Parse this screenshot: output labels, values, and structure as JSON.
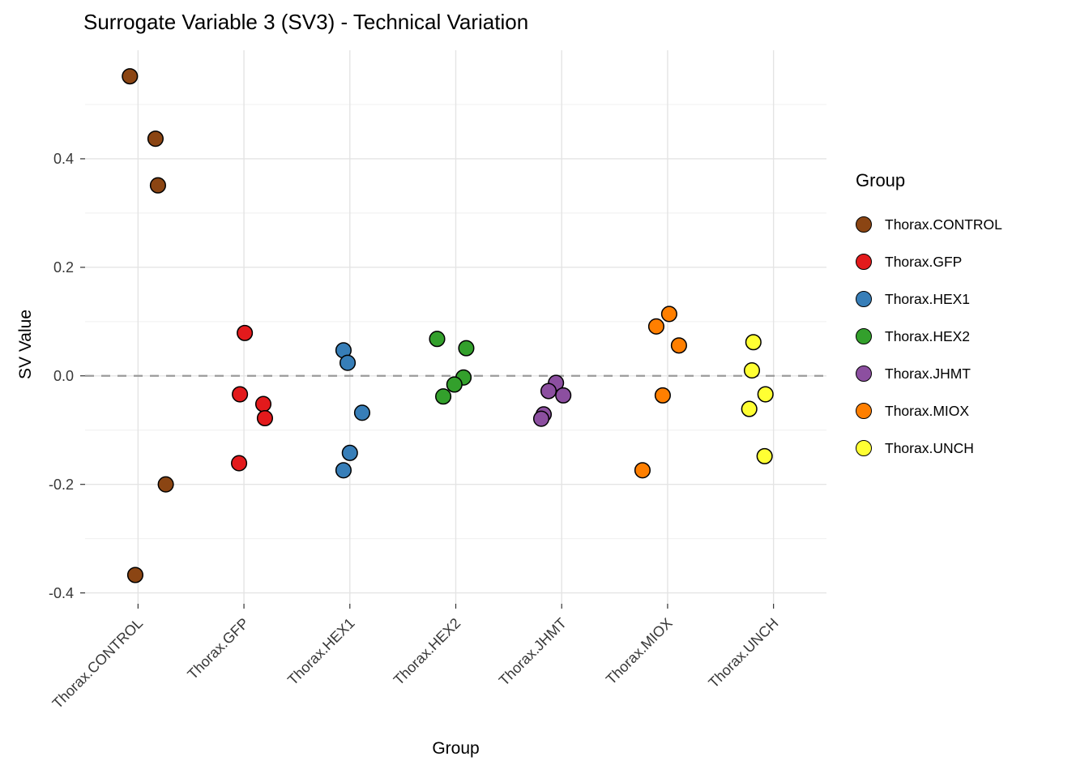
{
  "legend": {
    "title": "Group"
  },
  "chart_data": {
    "type": "scatter",
    "title": "Surrogate Variable 3 (SV3) - Technical Variation",
    "xlabel": "Group",
    "ylabel": "SV Value",
    "ylim": [
      -0.42,
      0.6
    ],
    "yticks": [
      -0.4,
      -0.2,
      0.0,
      0.2,
      0.4
    ],
    "yticks_minor": [
      -0.3,
      -0.1,
      0.1,
      0.3,
      0.5
    ],
    "zero_line_y": 0.0,
    "grid": true,
    "legend_position": "right",
    "zero_line_color": "#9B9B9B",
    "categories": [
      "Thorax.CONTROL",
      "Thorax.GFP",
      "Thorax.HEX1",
      "Thorax.HEX2",
      "Thorax.JHMT",
      "Thorax.MIOX",
      "Thorax.UNCH"
    ],
    "series": [
      {
        "name": "Thorax.CONTROL",
        "color": "#8B4513",
        "points": [
          {
            "y": 0.552,
            "jx": -0.077
          },
          {
            "y": 0.437,
            "jx": 0.165
          },
          {
            "y": 0.351,
            "jx": 0.188
          },
          {
            "y": -0.2,
            "jx": 0.262
          },
          {
            "y": -0.367,
            "jx": -0.026
          }
        ]
      },
      {
        "name": "Thorax.GFP",
        "color": "#E31A1C",
        "points": [
          {
            "y": 0.079,
            "jx": 0.008
          },
          {
            "y": -0.034,
            "jx": -0.038
          },
          {
            "y": -0.052,
            "jx": 0.183
          },
          {
            "y": -0.078,
            "jx": 0.198
          },
          {
            "y": -0.161,
            "jx": -0.046
          }
        ]
      },
      {
        "name": "Thorax.HEX1",
        "color": "#377EB8",
        "points": [
          {
            "y": 0.047,
            "jx": -0.06
          },
          {
            "y": 0.024,
            "jx": -0.021
          },
          {
            "y": -0.068,
            "jx": 0.116
          },
          {
            "y": -0.142,
            "jx": 0.0
          },
          {
            "y": -0.174,
            "jx": -0.06
          }
        ]
      },
      {
        "name": "Thorax.HEX2",
        "color": "#33A02C",
        "points": [
          {
            "y": 0.068,
            "jx": -0.176
          },
          {
            "y": 0.051,
            "jx": 0.099
          },
          {
            "y": -0.003,
            "jx": 0.073
          },
          {
            "y": -0.016,
            "jx": -0.013
          },
          {
            "y": -0.038,
            "jx": -0.118
          }
        ]
      },
      {
        "name": "Thorax.JHMT",
        "color": "#8C4FA0",
        "points": [
          {
            "y": -0.013,
            "jx": -0.054
          },
          {
            "y": -0.028,
            "jx": -0.124
          },
          {
            "y": -0.036,
            "jx": 0.015
          },
          {
            "y": -0.071,
            "jx": -0.17
          },
          {
            "y": -0.079,
            "jx": -0.193
          }
        ]
      },
      {
        "name": "Thorax.MIOX",
        "color": "#FF7F00",
        "points": [
          {
            "y": 0.114,
            "jx": 0.015
          },
          {
            "y": 0.091,
            "jx": -0.107
          },
          {
            "y": 0.056,
            "jx": 0.107
          },
          {
            "y": -0.036,
            "jx": -0.046
          },
          {
            "y": -0.174,
            "jx": -0.237
          }
        ]
      },
      {
        "name": "Thorax.UNCH",
        "color": "#FFFF33",
        "points": [
          {
            "y": 0.062,
            "jx": -0.19
          },
          {
            "y": 0.01,
            "jx": -0.204
          },
          {
            "y": -0.034,
            "jx": -0.076
          },
          {
            "y": -0.061,
            "jx": -0.229
          },
          {
            "y": -0.148,
            "jx": -0.084
          }
        ]
      }
    ]
  }
}
